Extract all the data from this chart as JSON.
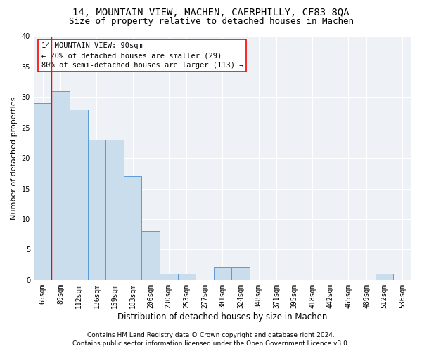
{
  "title1": "14, MOUNTAIN VIEW, MACHEN, CAERPHILLY, CF83 8QA",
  "title2": "Size of property relative to detached houses in Machen",
  "xlabel": "Distribution of detached houses by size in Machen",
  "ylabel": "Number of detached properties",
  "categories": [
    "65sqm",
    "89sqm",
    "112sqm",
    "136sqm",
    "159sqm",
    "183sqm",
    "206sqm",
    "230sqm",
    "253sqm",
    "277sqm",
    "301sqm",
    "324sqm",
    "348sqm",
    "371sqm",
    "395sqm",
    "418sqm",
    "442sqm",
    "465sqm",
    "489sqm",
    "512sqm",
    "536sqm"
  ],
  "values": [
    29,
    31,
    28,
    23,
    23,
    17,
    8,
    1,
    1,
    0,
    2,
    2,
    0,
    0,
    0,
    0,
    0,
    0,
    0,
    1,
    0
  ],
  "bar_color": "#c9dded",
  "bar_edge_color": "#5b9bd5",
  "red_line_x": 0.5,
  "annotation_text": "14 MOUNTAIN VIEW: 90sqm\n← 20% of detached houses are smaller (29)\n80% of semi-detached houses are larger (113) →",
  "annotation_box_color": "white",
  "annotation_border_color": "red",
  "ylim": [
    0,
    40
  ],
  "yticks": [
    0,
    5,
    10,
    15,
    20,
    25,
    30,
    35,
    40
  ],
  "footer_line1": "Contains HM Land Registry data © Crown copyright and database right 2024.",
  "footer_line2": "Contains public sector information licensed under the Open Government Licence v3.0.",
  "background_color": "#eef2f7",
  "grid_color": "#ffffff",
  "title1_fontsize": 10,
  "title2_fontsize": 9,
  "xlabel_fontsize": 8.5,
  "ylabel_fontsize": 8,
  "tick_fontsize": 7,
  "footer_fontsize": 6.5,
  "annotation_fontsize": 7.5
}
